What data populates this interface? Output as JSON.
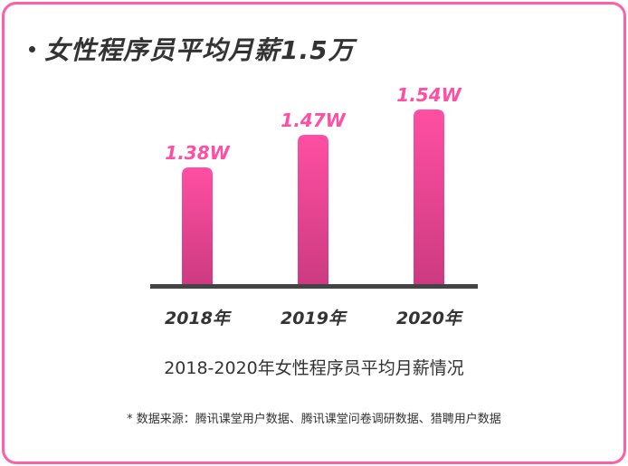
{
  "title": "女性程序员平均月薪1.5万",
  "chart_data": {
    "type": "bar",
    "categories": [
      "2018年",
      "2019年",
      "2020年"
    ],
    "values": [
      1.38,
      1.47,
      1.54
    ],
    "value_labels": [
      "1.38W",
      "1.47W",
      "1.54W"
    ],
    "unit": "W",
    "title": "2018-2020年女性程序员平均月薪情况",
    "xlabel": "",
    "ylabel": "",
    "ylim": [
      1.05,
      1.6
    ],
    "grid": false,
    "bar_color_top": "#ff4fa3",
    "bar_color_bottom": "#cc3a80",
    "label_color": "#ff4fa3",
    "axis_color": "#444444"
  },
  "footnote": "* 数据来源：腾讯课堂用户数据、腾讯课堂问卷调研数据、猎聘用户数据"
}
